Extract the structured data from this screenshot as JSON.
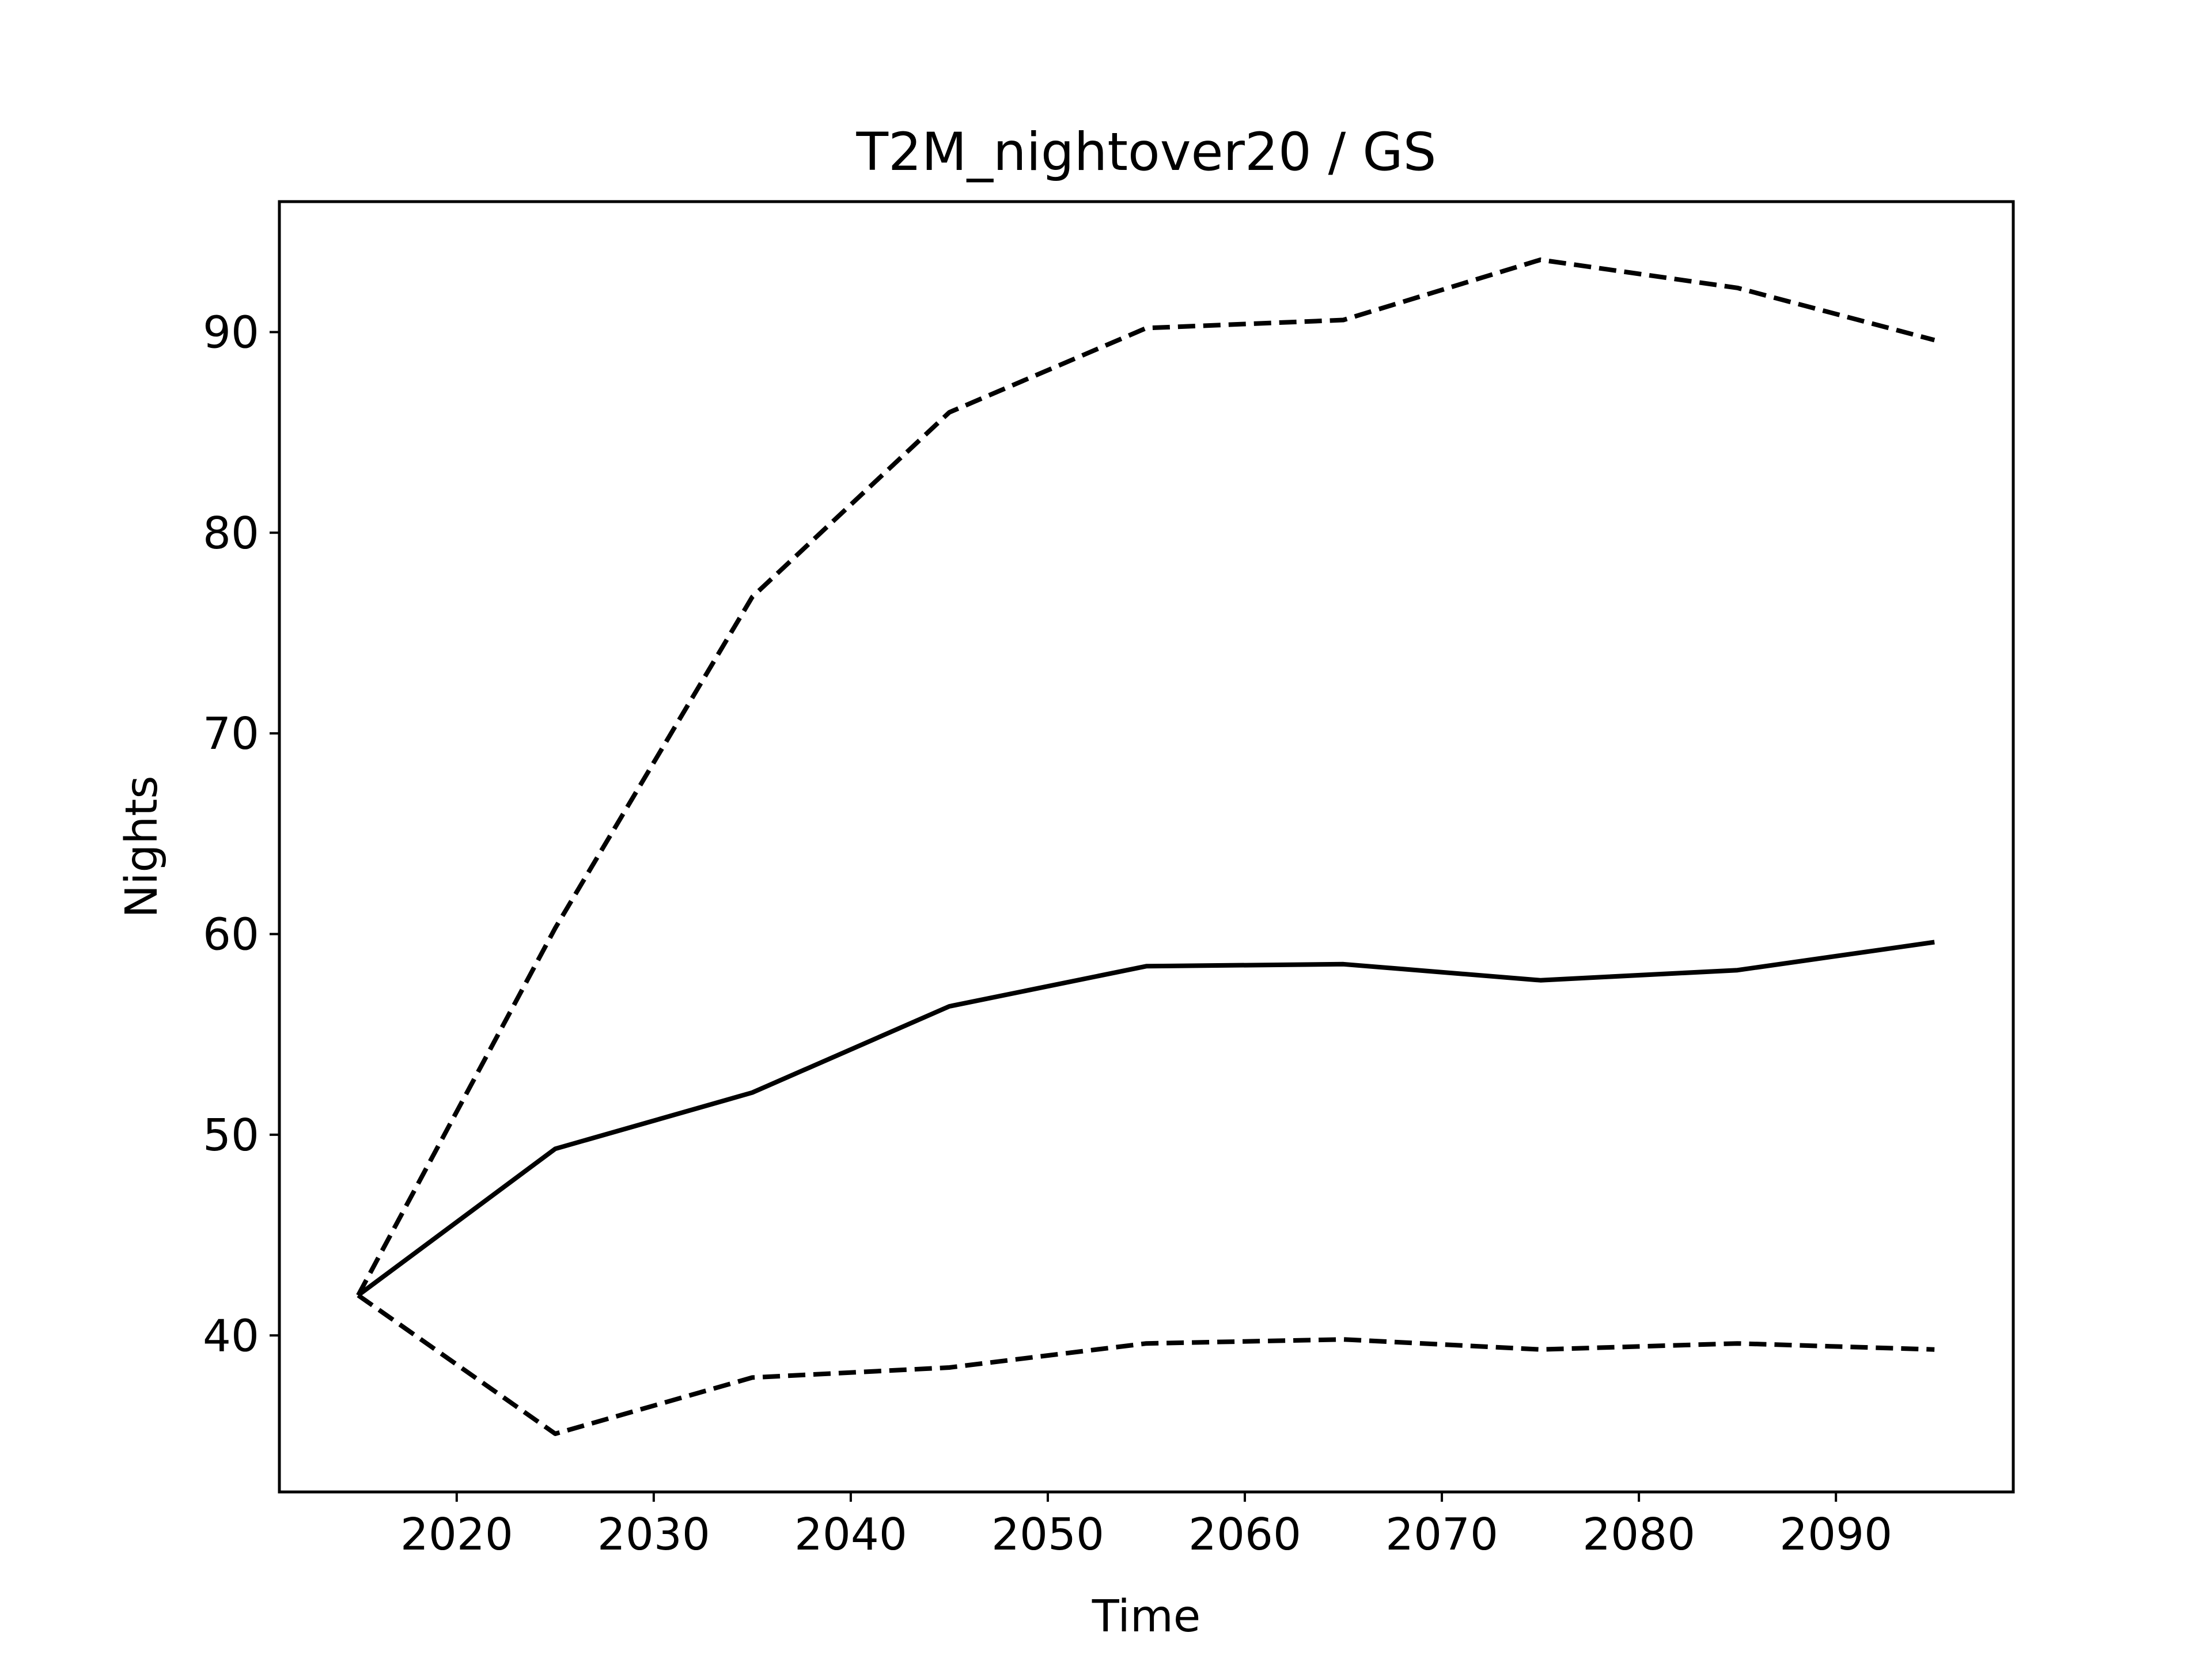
{
  "chart_data": {
    "type": "line",
    "title": "T2M_nightover20 / GS",
    "xlabel": "Time",
    "ylabel": "Nights",
    "xlim": [
      2011,
      2099
    ],
    "ylim": [
      32.2,
      96.5
    ],
    "xticks": [
      2020,
      2030,
      2040,
      2050,
      2060,
      2070,
      2080,
      2090
    ],
    "yticks": [
      40,
      50,
      60,
      70,
      80,
      90
    ],
    "grid": false,
    "legend": "none",
    "x": [
      2015,
      2025,
      2035,
      2045,
      2055,
      2065,
      2075,
      2085,
      2095
    ],
    "series": [
      {
        "style": "dashed",
        "color": "#000000",
        "values": [
          42.0,
          60.3,
          76.8,
          86.0,
          90.2,
          90.6,
          93.6,
          92.2,
          89.6
        ]
      },
      {
        "style": "solid",
        "color": "#000000",
        "values": [
          42.0,
          49.3,
          52.1,
          56.4,
          58.4,
          58.5,
          57.7,
          58.2,
          59.6
        ]
      },
      {
        "style": "dashed",
        "color": "#000000",
        "values": [
          42.0,
          35.1,
          37.9,
          38.4,
          39.6,
          39.8,
          39.3,
          39.6,
          39.3
        ]
      }
    ]
  }
}
